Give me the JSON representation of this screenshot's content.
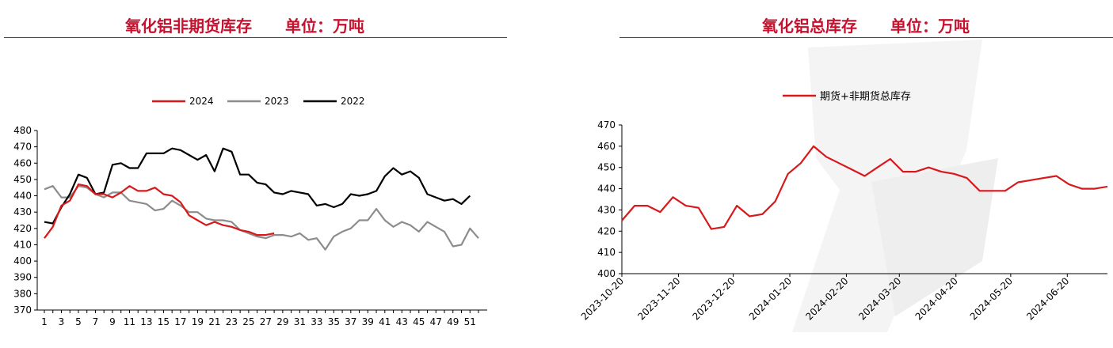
{
  "left_panel": {
    "title": "氧化铝非期货库存",
    "unit": "单位：万吨"
  },
  "right_panel": {
    "title": "氧化铝总库存",
    "unit": "单位：万吨"
  },
  "chart_data": [
    {
      "type": "line",
      "title": "氧化铝非期货库存",
      "unit": "单位：万吨",
      "x": [
        1,
        2,
        3,
        4,
        5,
        6,
        7,
        8,
        9,
        10,
        11,
        12,
        13,
        14,
        15,
        16,
        17,
        18,
        19,
        20,
        21,
        22,
        23,
        24,
        25,
        26,
        27,
        28,
        29,
        30,
        31,
        32,
        33,
        34,
        35,
        36,
        37,
        38,
        39,
        40,
        41,
        42,
        43,
        44,
        45,
        46,
        47,
        48,
        49,
        50,
        51,
        52
      ],
      "x_tick_labels": [
        "1",
        "3",
        "5",
        "7",
        "9",
        "11",
        "13",
        "15",
        "17",
        "19",
        "21",
        "23",
        "25",
        "27",
        "29",
        "31",
        "33",
        "35",
        "37",
        "39",
        "41",
        "43",
        "45",
        "47",
        "49",
        "51"
      ],
      "ylim": [
        370,
        480
      ],
      "y_ticks": [
        370,
        380,
        390,
        400,
        410,
        420,
        430,
        440,
        450,
        460,
        470,
        480
      ],
      "legend_position": "top",
      "series": [
        {
          "name": "2024",
          "color": "#d7191c",
          "values": [
            414,
            421,
            434,
            437,
            447,
            446,
            441,
            441,
            439,
            442,
            446,
            443,
            443,
            445,
            441,
            440,
            436,
            428,
            425,
            422,
            424,
            422,
            421,
            419,
            418,
            416,
            416,
            417,
            null,
            null,
            null,
            null,
            null,
            null,
            null,
            null,
            null,
            null,
            null,
            null,
            null,
            null,
            null,
            null,
            null,
            null,
            null,
            null,
            null,
            null,
            null,
            null
          ]
        },
        {
          "name": "2023",
          "color": "#8c8c8c",
          "values": [
            444,
            446,
            439,
            439,
            446,
            445,
            441,
            439,
            442,
            442,
            437,
            436,
            435,
            431,
            432,
            437,
            434,
            430,
            430,
            426,
            425,
            425,
            424,
            419,
            417,
            415,
            414,
            416,
            416,
            415,
            417,
            413,
            414,
            407,
            415,
            418,
            420,
            425,
            425,
            432,
            425,
            421,
            424,
            422,
            418,
            424,
            421,
            418,
            409,
            410,
            420,
            414
          ]
        },
        {
          "name": "2022",
          "color": "#000000",
          "values": [
            424,
            423,
            433,
            441,
            453,
            451,
            441,
            442,
            459,
            460,
            457,
            457,
            466,
            466,
            466,
            469,
            468,
            465,
            462,
            465,
            455,
            469,
            467,
            453,
            453,
            448,
            447,
            442,
            441,
            443,
            442,
            441,
            434,
            435,
            433,
            435,
            441,
            440,
            441,
            443,
            452,
            457,
            453,
            455,
            451,
            441,
            439,
            437,
            438,
            435,
            440,
            null
          ]
        }
      ]
    },
    {
      "type": "line",
      "title": "氧化铝总库存",
      "unit": "单位：万吨",
      "x": [
        "2023-10-20",
        "2023-10-27",
        "2023-11-03",
        "2023-11-10",
        "2023-11-17",
        "2023-11-24",
        "2023-12-01",
        "2023-12-08",
        "2023-12-15",
        "2023-12-22",
        "2023-12-29",
        "2024-01-05",
        "2024-01-12",
        "2024-01-19",
        "2024-01-26",
        "2024-02-02",
        "2024-02-09",
        "2024-02-16",
        "2024-02-23",
        "2024-03-01",
        "2024-03-08",
        "2024-03-15",
        "2024-03-22",
        "2024-03-29",
        "2024-04-05",
        "2024-04-12",
        "2024-04-19",
        "2024-04-26",
        "2024-05-03",
        "2024-05-10",
        "2024-05-17",
        "2024-05-24",
        "2024-05-31",
        "2024-06-07",
        "2024-06-14",
        "2024-06-21",
        "2024-06-28",
        "2024-07-05",
        "2024-07-12"
      ],
      "x_tick_labels": [
        "2023-10-20",
        "2023-11-20",
        "2023-12-20",
        "2024-01-20",
        "2024-02-20",
        "2024-03-20",
        "2024-04-20",
        "2024-05-20",
        "2024-06-20"
      ],
      "ylim": [
        400,
        470
      ],
      "y_ticks": [
        400,
        410,
        420,
        430,
        440,
        450,
        460,
        470
      ],
      "legend_position": "top",
      "series": [
        {
          "name": "期货+非期货总库存",
          "color": "#d7191c",
          "values": [
            425,
            432,
            432,
            429,
            436,
            432,
            431,
            421,
            422,
            432,
            427,
            428,
            434,
            447,
            452,
            460,
            455,
            452,
            449,
            446,
            450,
            454,
            448,
            448,
            450,
            448,
            447,
            445,
            439,
            439,
            439,
            443,
            444,
            445,
            446,
            442,
            440,
            440,
            441
          ]
        }
      ]
    }
  ]
}
